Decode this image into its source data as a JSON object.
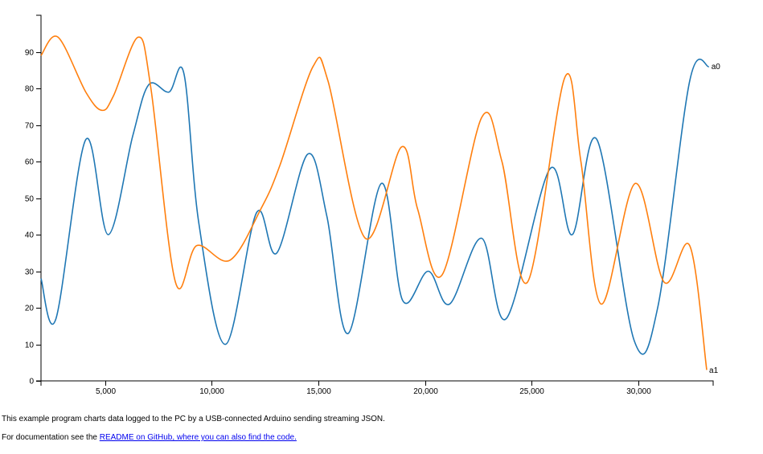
{
  "chart_data": {
    "type": "line",
    "xlim": [
      2000,
      33500
    ],
    "ylim": [
      0,
      100
    ],
    "x_ticks": [
      5000,
      10000,
      15000,
      20000,
      25000,
      30000
    ],
    "x_tick_labels": [
      "5,000",
      "10,000",
      "15,000",
      "20,000",
      "25,000",
      "30,000"
    ],
    "y_ticks": [
      0,
      10,
      20,
      30,
      40,
      50,
      60,
      70,
      80,
      90
    ],
    "y_tick_labels": [
      "0",
      "10",
      "20",
      "30",
      "40",
      "50",
      "60",
      "70",
      "80",
      "90"
    ],
    "grid": false,
    "series": [
      {
        "name": "a0",
        "color": "#1f77b4",
        "x": [
          2000,
          2700,
          4100,
          5150,
          6300,
          7050,
          8000,
          8700,
          9400,
          10650,
          12100,
          13050,
          14500,
          15400,
          16400,
          17950,
          18950,
          20150,
          21150,
          22650,
          23800,
          25850,
          26900,
          28050,
          29800,
          30900,
          32400,
          33300
        ],
        "y": [
          28,
          17,
          66,
          40,
          67,
          81,
          79,
          84,
          43,
          10,
          46,
          35,
          62,
          45,
          13,
          54,
          22,
          30,
          21,
          39,
          17,
          58,
          40,
          66,
          11,
          20,
          82,
          86
        ]
      },
      {
        "name": "a1",
        "color": "#ff7f0e",
        "x": [
          2000,
          2800,
          4100,
          4850,
          5400,
          6550,
          7150,
          8300,
          9300,
          10850,
          12300,
          13200,
          14750,
          15450,
          17200,
          18900,
          19650,
          20800,
          22650,
          23600,
          24800,
          26550,
          27300,
          28250,
          29850,
          31200,
          32400,
          33200
        ],
        "y": [
          89,
          94,
          79,
          74,
          78,
          94,
          80,
          27,
          37,
          33,
          47,
          59,
          86,
          82,
          39,
          64,
          47,
          29,
          72,
          60,
          27,
          83,
          60,
          21,
          54,
          27,
          37,
          3
        ]
      }
    ]
  },
  "caption_line1": "This example program charts data logged to the PC by a USB-connected Arduino sending streaming JSON.",
  "caption_line2_prefix": "For documentation see the ",
  "caption_link_text": "README on GitHub, where you can also find the code."
}
